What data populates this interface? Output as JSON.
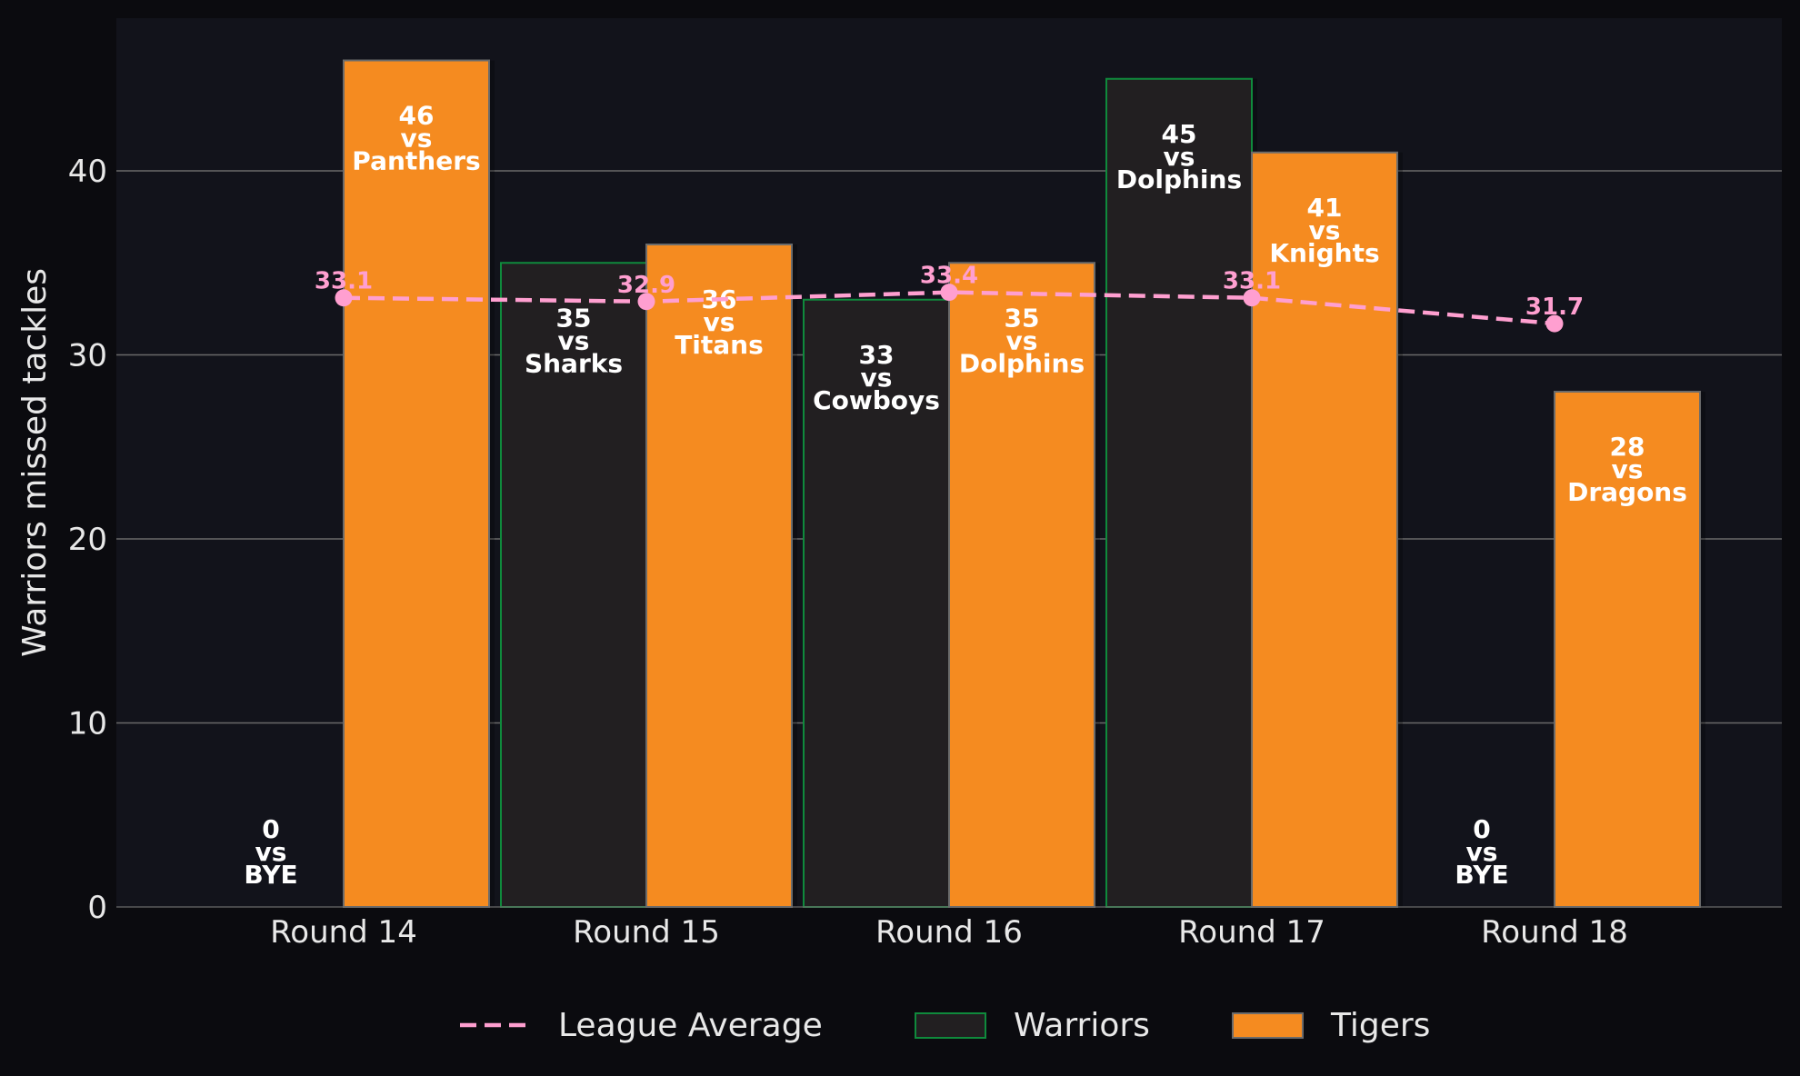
{
  "chart_data": {
    "type": "bar",
    "categories": [
      "Round 14",
      "Round 15",
      "Round 16",
      "Round 17",
      "Round 18"
    ],
    "ylabel": "Warriors missed tackles",
    "ylim": [
      0,
      48
    ],
    "yticks": [
      0,
      10,
      20,
      30,
      40
    ],
    "grid": true,
    "legend_position": "bottom-center",
    "series": [
      {
        "name": "Warriors",
        "kind": "bar",
        "values": [
          0,
          35,
          33,
          45,
          0
        ],
        "opponents": [
          "BYE",
          "Sharks",
          "Cowboys",
          "Dolphins",
          "BYE"
        ],
        "fill": "#221f21",
        "stroke": "#0f8a3c"
      },
      {
        "name": "Tigers",
        "kind": "bar",
        "values": [
          46,
          36,
          35,
          41,
          28
        ],
        "opponents": [
          "Panthers",
          "Titans",
          "Dolphins",
          "Knights",
          "Dragons"
        ],
        "fill": "#f58b20",
        "stroke": "#6b6b6b"
      },
      {
        "name": "League Average",
        "kind": "line",
        "values": [
          33.1,
          32.9,
          33.4,
          33.1,
          31.7
        ],
        "labels": [
          "33.1",
          "32.9",
          "33.4",
          "33.1",
          "31.7"
        ],
        "color": "#ff9fd0"
      }
    ],
    "vs_word": "vs"
  },
  "colors": {
    "page_bg": "#0b0b0f",
    "plot_bg": "#12131b",
    "grid": "#6a6a6a",
    "text": "#e8e8e8"
  }
}
